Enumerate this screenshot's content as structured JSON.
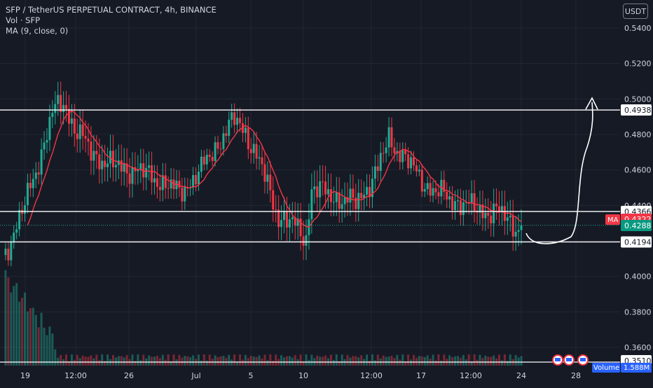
{
  "legend": {
    "title": "SFP / TetherUS PERPETUAL CONTRACT, 4h, BINANCE",
    "volume": "Vol · SFP",
    "ma": "MA (9, close, 0)"
  },
  "currency_button": "USDT",
  "price_axis": {
    "ticks": [
      "0.5400",
      "0.5200",
      "0.5000",
      "0.4800",
      "0.4600",
      "0.4400",
      "0.4000",
      "0.3800",
      "0.3600"
    ],
    "labels": {
      "resistance": "0.4938",
      "upper_support": "0.4366",
      "ma_value": "0.4322",
      "ma_tag": "MA",
      "last_price": "0.4288",
      "lower_support": "0.4194",
      "bottom_line": "0.3510",
      "volume_tag": "Volume",
      "volume_value": "1.588M"
    }
  },
  "time_axis": [
    "19",
    "12:00",
    "26",
    "Jul",
    "5",
    "10",
    "12:00",
    "17",
    "12:00",
    "24",
    "28"
  ],
  "colors": {
    "background": "#161a25",
    "up": "#22ab94",
    "down": "#f23645",
    "ma": "#f23645",
    "hline": "#ffffff",
    "text": "#d1d4dc"
  },
  "chart_data": {
    "type": "candlestick",
    "symbol": "SFP / TetherUS PERPETUAL CONTRACT",
    "interval": "4h",
    "exchange": "BINANCE",
    "horizontal_levels": [
      0.4938,
      0.4366,
      0.4194
    ],
    "ylim": [
      0.352,
      0.548
    ],
    "last_price": 0.4288,
    "ma_last": 0.4322,
    "anchors": [
      [
        0,
        0.41
      ],
      [
        8,
        0.44
      ],
      [
        14,
        0.47
      ],
      [
        18,
        0.492
      ],
      [
        22,
        0.498
      ],
      [
        26,
        0.484
      ],
      [
        32,
        0.47
      ],
      [
        40,
        0.462
      ],
      [
        48,
        0.46
      ],
      [
        56,
        0.455
      ],
      [
        64,
        0.447
      ],
      [
        72,
        0.46
      ],
      [
        80,
        0.48
      ],
      [
        84,
        0.488
      ],
      [
        88,
        0.482
      ],
      [
        94,
        0.46
      ],
      [
        100,
        0.434
      ],
      [
        106,
        0.428
      ],
      [
        110,
        0.422
      ],
      [
        112,
        0.45
      ],
      [
        120,
        0.445
      ],
      [
        128,
        0.441
      ],
      [
        136,
        0.46
      ],
      [
        140,
        0.478
      ],
      [
        144,
        0.47
      ],
      [
        150,
        0.458
      ],
      [
        156,
        0.448
      ],
      [
        162,
        0.444
      ],
      [
        168,
        0.44
      ],
      [
        174,
        0.437
      ],
      [
        180,
        0.436
      ],
      [
        186,
        0.428
      ],
      [
        188,
        0.428
      ]
    ]
  }
}
